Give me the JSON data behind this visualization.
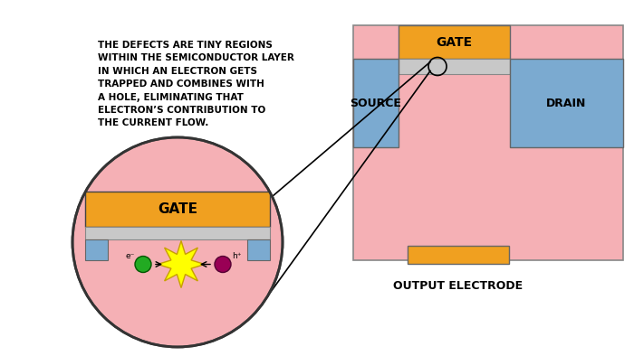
{
  "bg_color": "#ffffff",
  "annotation_text": "THE DEFECTS ARE TINY REGIONS\nWITHIN THE SEMICONDUCTOR LAYER\nIN WHICH AN ELECTRON GETS\nTRAPPED AND COMBINES WITH\nA HOLE, ELIMINATING THAT\nELECTRON’S CONTRIBUTION TO\nTHE CURRENT FLOW.",
  "annotation_fontsize": 7.5,
  "mosfet_colors": {
    "gate_bar": "#F0A020",
    "oxide": "#C8C8C8",
    "source_drain": "#7BAAD0",
    "body": "#F5B0B5",
    "output_electrode": "#F0A020"
  },
  "gate_label": "GATE",
  "source_label": "SOURCE",
  "drain_label": "DRAIN",
  "output_label": "OUTPUT ELECTRODE",
  "zoom_gate_label": "GATE",
  "electron_label": "e⁻",
  "hole_label": "h⁺",
  "label_fontsize": 9,
  "gate_fontsize": 10,
  "zoom_gate_fontsize": 11
}
